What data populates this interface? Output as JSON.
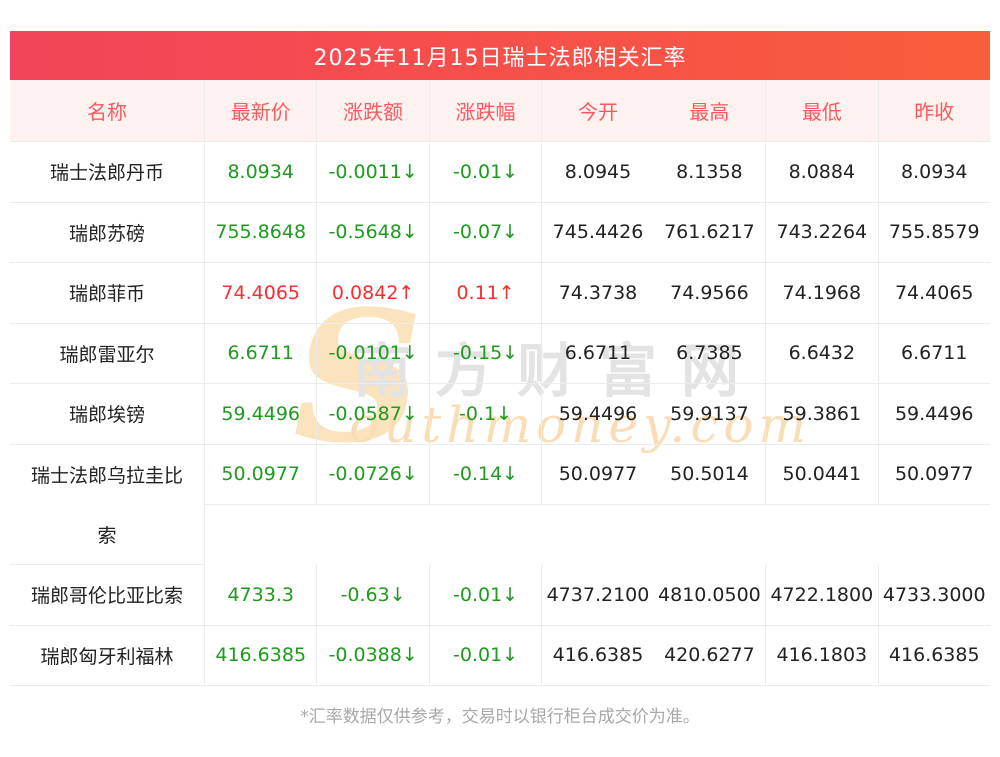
{
  "title": "2025年11月15日瑞士法郎相关汇率",
  "footnote": "*汇率数据仅供参考，交易时以银行柜台成交价为准。",
  "watermark": {
    "initial": "S",
    "cn": "南方财富网",
    "en": "outhmoney.com"
  },
  "colors": {
    "title_gradient_left": "#f4435a",
    "title_gradient_right": "#f85d3b",
    "header_text": "#fa5a5f",
    "header_bg": "#fdf2f0",
    "up": "#fb2d2d",
    "down": "#1e9b1e",
    "border": "#ececec"
  },
  "table": {
    "columns": [
      "名称",
      "最新价",
      "涨跌额",
      "涨跌幅",
      "今开",
      "最高",
      "最低",
      "昨收"
    ],
    "rows": [
      {
        "name": "瑞士法郎丹币",
        "last": "8.0934",
        "change": "-0.0011↓",
        "pct": "-0.01↓",
        "open": "8.0945",
        "high": "8.1358",
        "low": "8.0884",
        "prev": "8.0934",
        "trend": "down"
      },
      {
        "name": "瑞郎苏磅",
        "last": "755.8648",
        "change": "-0.5648↓",
        "pct": "-0.07↓",
        "open": "745.4426",
        "high": "761.6217",
        "low": "743.2264",
        "prev": "755.8579",
        "trend": "down"
      },
      {
        "name": "瑞郎菲币",
        "last": "74.4065",
        "change": "0.0842↑",
        "pct": "0.11↑",
        "open": "74.3738",
        "high": "74.9566",
        "low": "74.1968",
        "prev": "74.4065",
        "trend": "up"
      },
      {
        "name": "瑞郎雷亚尔",
        "last": "6.6711",
        "change": "-0.0101↓",
        "pct": "-0.15↓",
        "open": "6.6711",
        "high": "6.7385",
        "low": "6.6432",
        "prev": "6.6711",
        "trend": "down"
      },
      {
        "name": "瑞郎埃镑",
        "last": "59.4496",
        "change": "-0.0587↓",
        "pct": "-0.1↓",
        "open": "59.4496",
        "high": "59.9137",
        "low": "59.3861",
        "prev": "59.4496",
        "trend": "down"
      },
      {
        "name_lines": [
          "瑞士法郎乌拉圭比",
          "索"
        ],
        "last": "50.0977",
        "change": "-0.0726↓",
        "pct": "-0.14↓",
        "open": "50.0977",
        "high": "50.5014",
        "low": "50.0441",
        "prev": "50.0977",
        "trend": "down"
      },
      {
        "name": "瑞郎哥伦比亚比索",
        "last": "4733.3",
        "change": "-0.63↓",
        "pct": "-0.01↓",
        "open": "4737.2100",
        "high": "4810.0500",
        "low": "4722.1800",
        "prev": "4733.3000",
        "trend": "down"
      },
      {
        "name": "瑞郎匈牙利福林",
        "last": "416.6385",
        "change": "-0.0388↓",
        "pct": "-0.01↓",
        "open": "416.6385",
        "high": "420.6277",
        "low": "416.1803",
        "prev": "416.6385",
        "trend": "down"
      }
    ]
  }
}
